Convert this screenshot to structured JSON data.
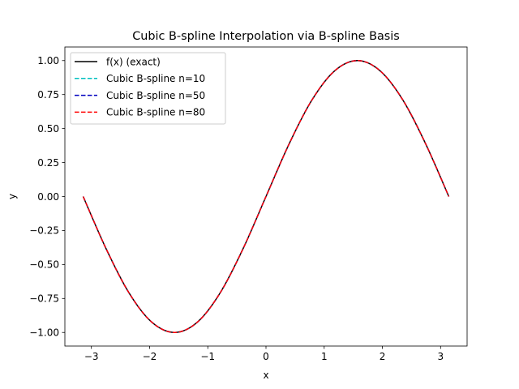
{
  "chart_data": {
    "type": "line",
    "title": "Cubic B-spline Interpolation via B-spline Basis",
    "xlabel": "x",
    "ylabel": "y",
    "xlim": [
      -3.4558,
      3.4558
    ],
    "ylim": [
      -1.1,
      1.1
    ],
    "x_ticks": [
      -3,
      -2,
      -1,
      0,
      1,
      2,
      3
    ],
    "x_tick_labels": [
      "−3",
      "−2",
      "−1",
      "0",
      "1",
      "2",
      "3"
    ],
    "y_ticks": [
      -1.0,
      -0.75,
      -0.5,
      -0.25,
      0.0,
      0.25,
      0.5,
      0.75,
      1.0
    ],
    "y_tick_labels": [
      "−1.00",
      "−0.75",
      "−0.50",
      "−0.25",
      "0.00",
      "0.25",
      "0.50",
      "0.75",
      "1.00"
    ],
    "grid": false,
    "legend_position": "upper-left",
    "x": [
      -3.1416,
      -2.7489,
      -2.3562,
      -1.9635,
      -1.5708,
      -1.1781,
      -0.7854,
      -0.3927,
      0.0,
      0.3927,
      0.7854,
      1.1781,
      1.5708,
      1.9635,
      2.3562,
      2.7489,
      3.1416
    ],
    "series": [
      {
        "name": "f(x) (exact)",
        "color": "#000000",
        "dash": "solid",
        "values": [
          0.0,
          -0.3827,
          -0.7071,
          -0.9239,
          -1.0,
          -0.9239,
          -0.7071,
          -0.3827,
          0.0,
          0.3827,
          0.7071,
          0.9239,
          1.0,
          0.9239,
          0.7071,
          0.3827,
          0.0
        ]
      },
      {
        "name": "Cubic B-spline n=10",
        "color": "#00bfbf",
        "dash": "dashed",
        "values": [
          0.0,
          -0.3827,
          -0.7071,
          -0.9239,
          -1.0,
          -0.9239,
          -0.7071,
          -0.3827,
          0.0,
          0.3827,
          0.7071,
          0.9239,
          1.0,
          0.9239,
          0.7071,
          0.3827,
          0.0
        ]
      },
      {
        "name": "Cubic B-spline n=50",
        "color": "#0000bf",
        "dash": "dashed",
        "values": [
          0.0,
          -0.3827,
          -0.7071,
          -0.9239,
          -1.0,
          -0.9239,
          -0.7071,
          -0.3827,
          0.0,
          0.3827,
          0.7071,
          0.9239,
          1.0,
          0.9239,
          0.7071,
          0.3827,
          0.0
        ]
      },
      {
        "name": "Cubic B-spline n=80",
        "color": "#ff0000",
        "dash": "dashed",
        "values": [
          0.0,
          -0.3827,
          -0.7071,
          -0.9239,
          -1.0,
          -0.9239,
          -0.7071,
          -0.3827,
          0.0,
          0.3827,
          0.7071,
          0.9239,
          1.0,
          0.9239,
          0.7071,
          0.3827,
          0.0
        ]
      }
    ]
  }
}
